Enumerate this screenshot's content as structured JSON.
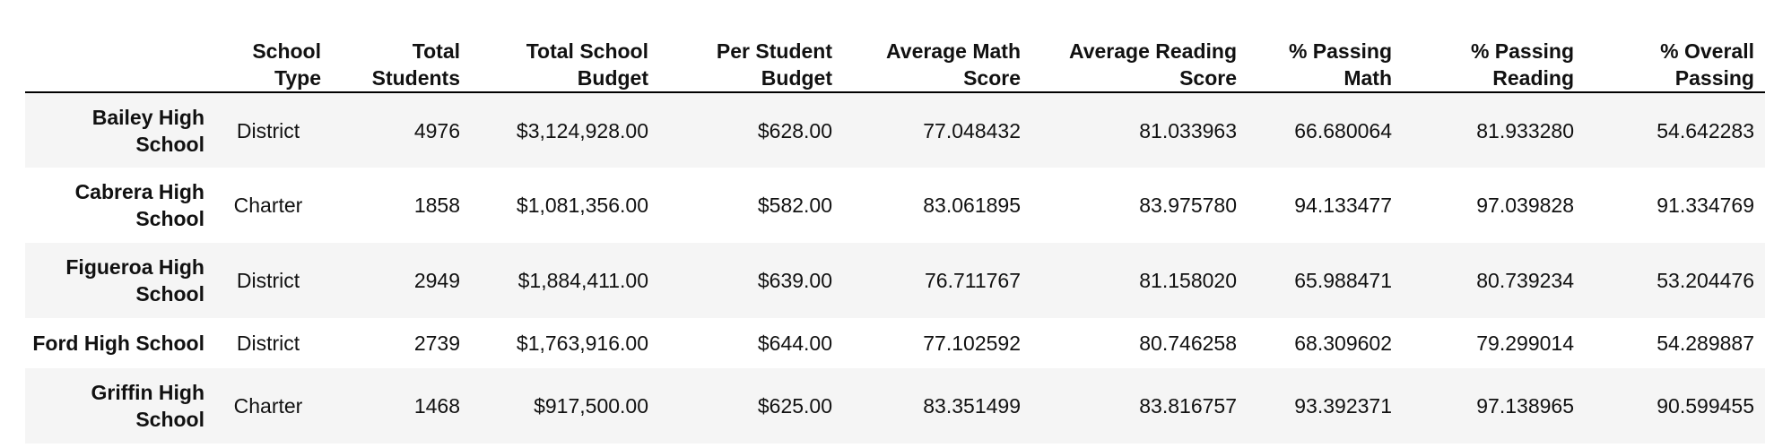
{
  "table": {
    "columns": [
      "School\nType",
      "Total\nStudents",
      "Total School\nBudget",
      "Per Student\nBudget",
      "Average Math\nScore",
      "Average Reading\nScore",
      "% Passing\nMath",
      "% Passing\nReading",
      "% Overall\nPassing"
    ],
    "rows": [
      {
        "index": "Bailey High School",
        "values": [
          "District",
          "4976",
          "$3,124,928.00",
          "$628.00",
          "77.048432",
          "81.033963",
          "66.680064",
          "81.933280",
          "54.642283"
        ]
      },
      {
        "index": "Cabrera High School",
        "values": [
          "Charter",
          "1858",
          "$1,081,356.00",
          "$582.00",
          "83.061895",
          "83.975780",
          "94.133477",
          "97.039828",
          "91.334769"
        ]
      },
      {
        "index": "Figueroa High School",
        "values": [
          "District",
          "2949",
          "$1,884,411.00",
          "$639.00",
          "76.711767",
          "81.158020",
          "65.988471",
          "80.739234",
          "53.204476"
        ]
      },
      {
        "index": "Ford High School",
        "values": [
          "District",
          "2739",
          "$1,763,916.00",
          "$644.00",
          "77.102592",
          "80.746258",
          "68.309602",
          "79.299014",
          "54.289887"
        ]
      },
      {
        "index": "Griffin High School",
        "values": [
          "Charter",
          "1468",
          "$917,500.00",
          "$625.00",
          "83.351499",
          "83.816757",
          "93.392371",
          "97.138965",
          "90.599455"
        ]
      }
    ]
  }
}
